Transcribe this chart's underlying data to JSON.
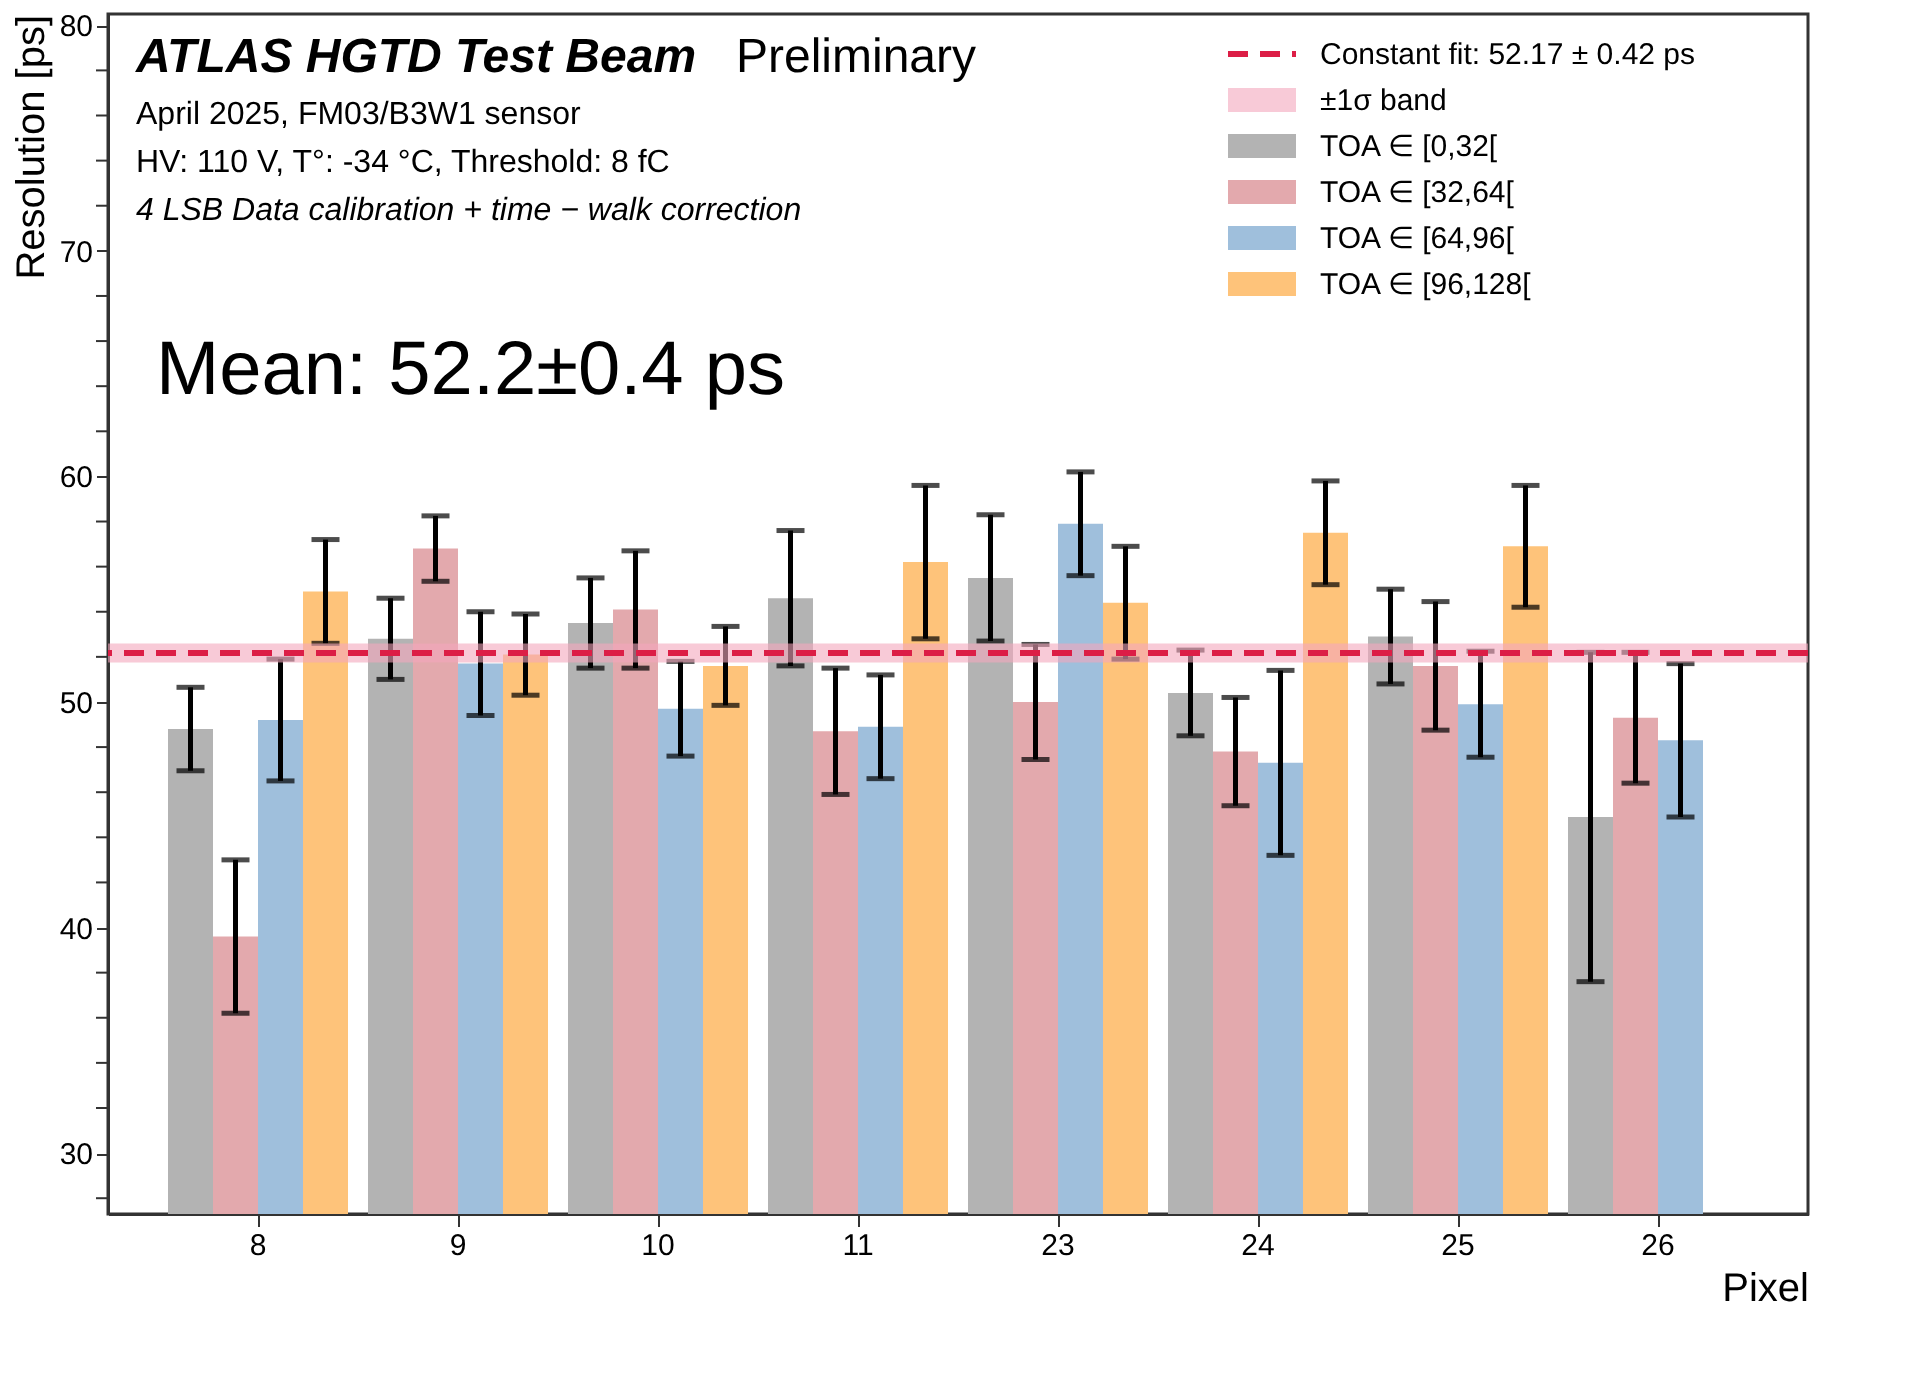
{
  "chart_data": {
    "type": "bar",
    "title": "ATLAS HGTD Test Beam",
    "subtitle": "Preliminary",
    "xlabel": "Pixel",
    "ylabel": "Resolution [ps]",
    "categories": [
      "8",
      "9",
      "10",
      "11",
      "23",
      "24",
      "25",
      "26"
    ],
    "series": [
      {
        "name": "TOA ∈ [0,32[",
        "color": "#b3b3b3",
        "values": [
          48.8,
          52.8,
          53.5,
          54.6,
          55.5,
          50.4,
          52.9,
          44.9
        ],
        "errors": [
          1.85,
          1.8,
          2.0,
          3.0,
          2.8,
          1.9,
          2.1,
          7.3
        ]
      },
      {
        "name": "TOA ∈ [32,64[",
        "color": "#e3a9ad",
        "values": [
          39.6,
          56.8,
          54.1,
          48.7,
          50.0,
          47.8,
          51.6,
          49.3
        ],
        "errors": [
          3.4,
          1.45,
          2.6,
          2.8,
          2.55,
          2.4,
          2.85,
          2.9
        ]
      },
      {
        "name": "TOA ∈ [64,96[",
        "color": "#9fbfdc",
        "values": [
          49.2,
          51.7,
          49.7,
          48.9,
          57.9,
          47.3,
          49.9,
          48.3
        ],
        "errors": [
          2.7,
          2.3,
          2.1,
          2.3,
          2.3,
          4.1,
          2.35,
          3.4
        ]
      },
      {
        "name": "TOA ∈ [96,128[",
        "color": "#fec37a",
        "values": [
          54.9,
          52.1,
          51.6,
          56.2,
          54.4,
          57.5,
          56.9,
          null
        ],
        "errors": [
          2.3,
          1.8,
          1.75,
          3.4,
          2.5,
          2.3,
          2.7,
          null
        ]
      }
    ],
    "ylim": [
      27.3,
      80.5
    ],
    "yticks": [
      {
        "value": 28,
        "label": null
      },
      30,
      {
        "value": 32,
        "label": null
      },
      {
        "value": 34,
        "label": null
      },
      {
        "value": 36,
        "label": null
      },
      {
        "value": 38,
        "label": null
      },
      40,
      {
        "value": 42,
        "label": null
      },
      {
        "value": 44,
        "label": null
      },
      {
        "value": 46,
        "label": null
      },
      {
        "value": 48,
        "label": null
      },
      50,
      {
        "value": 52,
        "label": null
      },
      {
        "value": 54,
        "label": null
      },
      {
        "value": 56,
        "label": null
      },
      {
        "value": 58,
        "label": null
      },
      60,
      {
        "value": 62,
        "label": null
      },
      {
        "value": 64,
        "label": null
      },
      {
        "value": 66,
        "label": null
      },
      {
        "value": 68,
        "label": null
      },
      70,
      {
        "value": 72,
        "label": null
      },
      {
        "value": 74,
        "label": null
      },
      {
        "value": 76,
        "label": null
      },
      {
        "value": 78,
        "label": null
      },
      80
    ],
    "ref_lines": [
      {
        "axis": "y",
        "value": 52.17,
        "label": "Constant fit: 52.17 ± 0.42 ps",
        "color": "#dc1e46",
        "line_style": "dashed"
      }
    ],
    "bands": [
      {
        "axis": "y",
        "from": 51.75,
        "to": 52.59,
        "label": "±1σ band",
        "color": "#f4a6bd"
      }
    ],
    "annotations": [
      "April 2025, FM03/B3W1 sensor",
      "HV: 110 V, T°: -34 °C, Threshold: 8 fC",
      "4 LSB Data calibration + time − walk correction",
      "Mean: 52.2±0.4 ps"
    ],
    "legend": "top right",
    "grid": false
  }
}
